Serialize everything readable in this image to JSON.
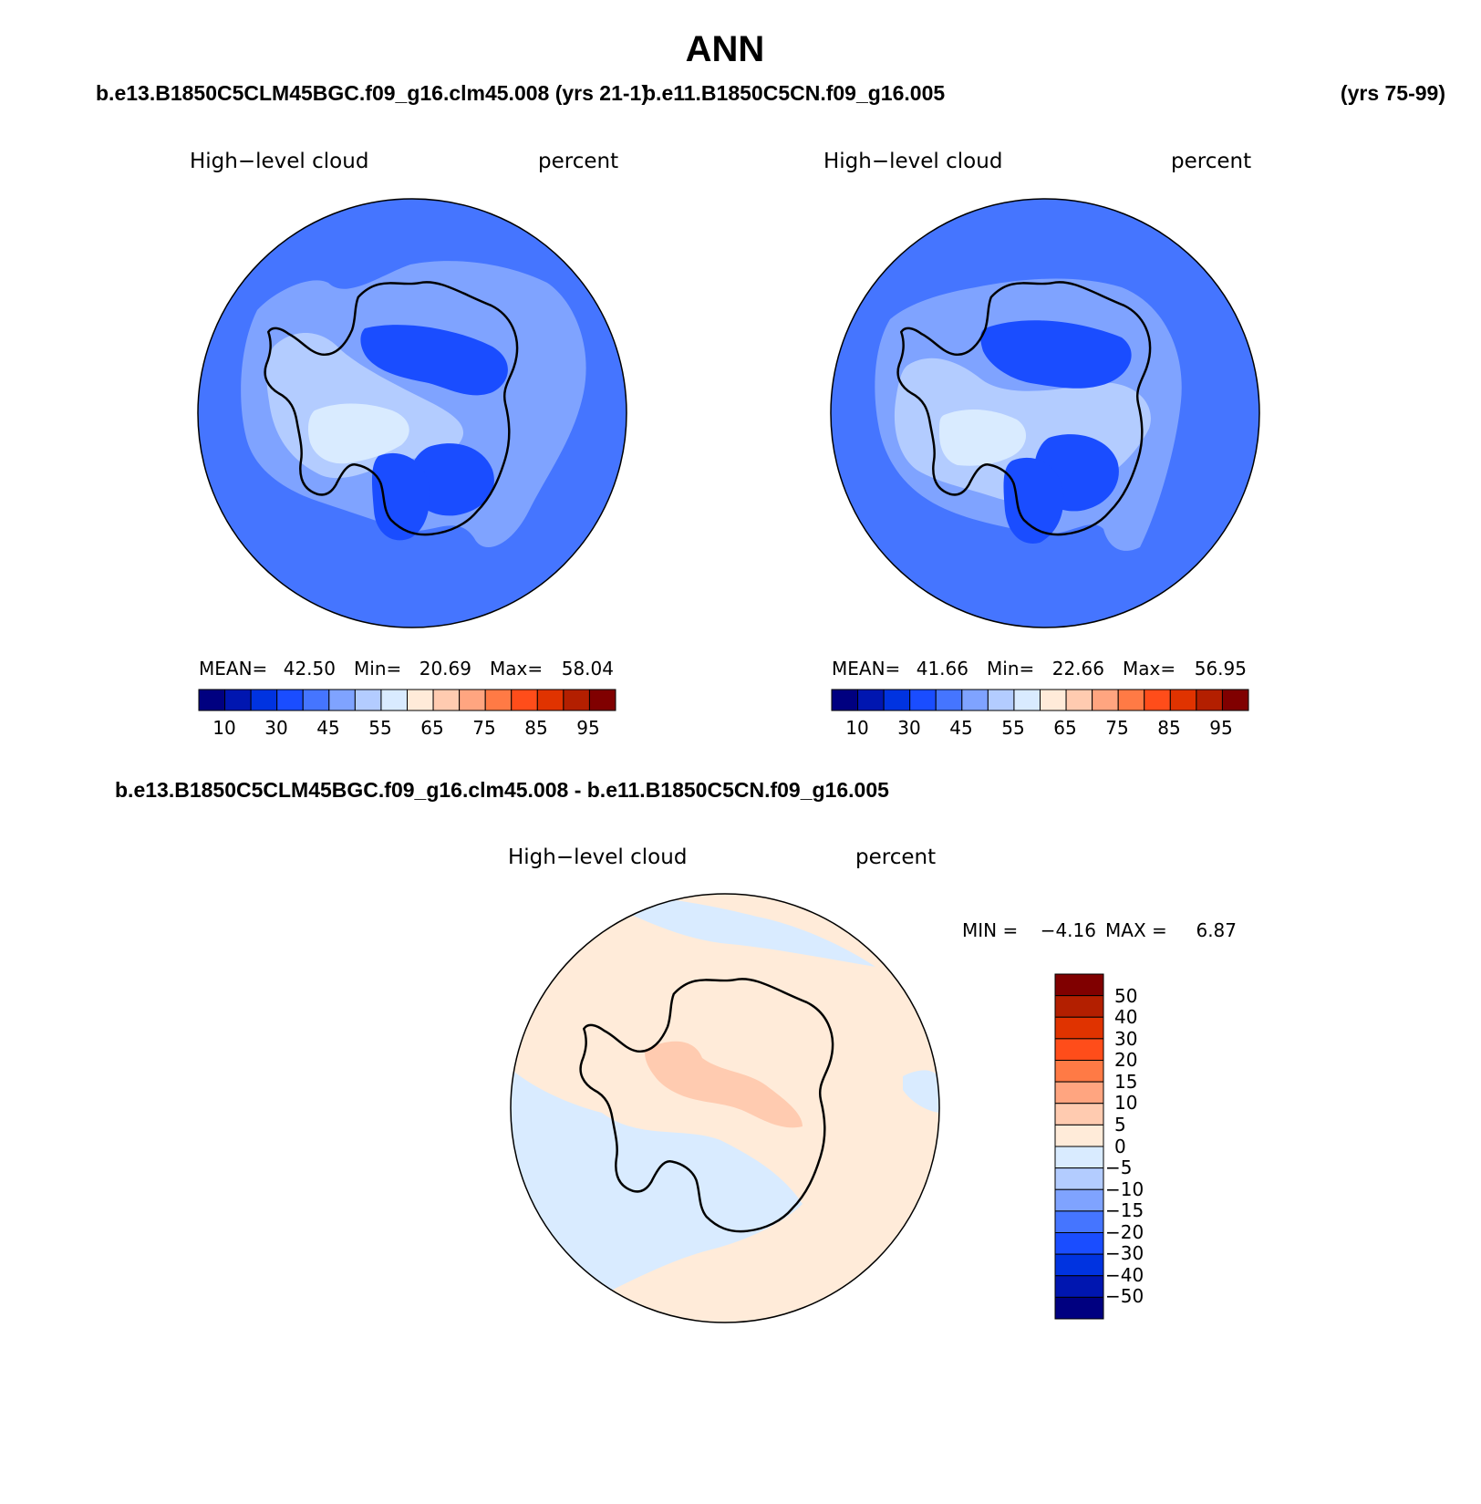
{
  "title": "ANN",
  "case_left": "b.e13.B1850C5CLM45BGC.f09_g16.clm45.008 (yrs 21-1)",
  "case_right": "b.e11.B1850C5CN.f09_g16.005",
  "case_right_years": "(yrs 75-99)",
  "diff_title": "b.e13.B1850C5CLM45BGC.f09_g16.clm45.008 - b.e11.B1850C5CN.f09_g16.005",
  "panels": [
    {
      "id": "case1",
      "variable": "High−level cloud",
      "units": "percent",
      "stats": {
        "mean_label": "MEAN=",
        "mean": "42.50",
        "min_label": "Min=",
        "min": "20.69",
        "max_label": "Max=",
        "max": "58.04"
      },
      "region_levels": {
        "ocean": 40,
        "outer_low": 45,
        "inner_mid": 50,
        "peninsula_high": 55,
        "plateau_low": 30,
        "ross_low": 35
      },
      "colorbar_labels": [
        "10",
        "30",
        "45",
        "55",
        "65",
        "75",
        "85",
        "95"
      ]
    },
    {
      "id": "case2",
      "variable": "High−level cloud",
      "units": "percent",
      "stats": {
        "mean_label": "MEAN=",
        "mean": "41.66",
        "min_label": "Min=",
        "min": "22.66",
        "max_label": "Max=",
        "max": "56.95"
      },
      "region_levels": {
        "ocean": 40,
        "outer_low": 45,
        "inner_mid": 50,
        "peninsula_high": 55,
        "plateau_low": 30,
        "ross_low": 35
      },
      "colorbar_labels": [
        "10",
        "30",
        "45",
        "55",
        "65",
        "75",
        "85",
        "95"
      ]
    },
    {
      "id": "difference",
      "variable": "High−level cloud",
      "units": "percent",
      "stats": {
        "min_label": "MIN =",
        "min": "−4.16",
        "max_label": "MAX =",
        "max": "6.87"
      },
      "region_levels": {
        "ocean_pos": 2.5,
        "ocean_neg": -2.5,
        "interior_pos": 7.5
      },
      "colorbar_labels": [
        "50",
        "40",
        "30",
        "20",
        "15",
        "10",
        "5",
        "0",
        "−5",
        "−10",
        "−15",
        "−20",
        "−30",
        "−40",
        "−50"
      ]
    }
  ],
  "palette": {
    "abs_levels": [
      "#000080",
      "#0016b0",
      "#0033e0",
      "#1a4dff",
      "#4575ff",
      "#7fa3ff",
      "#b3ccff",
      "#d9ebff",
      "#ffebd9",
      "#ffcbb0",
      "#ffa580",
      "#ff7a45",
      "#ff4d1a",
      "#e03300",
      "#b31f00",
      "#800000"
    ],
    "diff_levels": [
      "#800000",
      "#b31f00",
      "#e03300",
      "#ff4d1a",
      "#ff7a45",
      "#ffa580",
      "#ffcbb0",
      "#ffebd9",
      "#d9ebff",
      "#b3ccff",
      "#7fa3ff",
      "#4575ff",
      "#1a4dff",
      "#0033e0",
      "#0016b0",
      "#000080"
    ]
  }
}
